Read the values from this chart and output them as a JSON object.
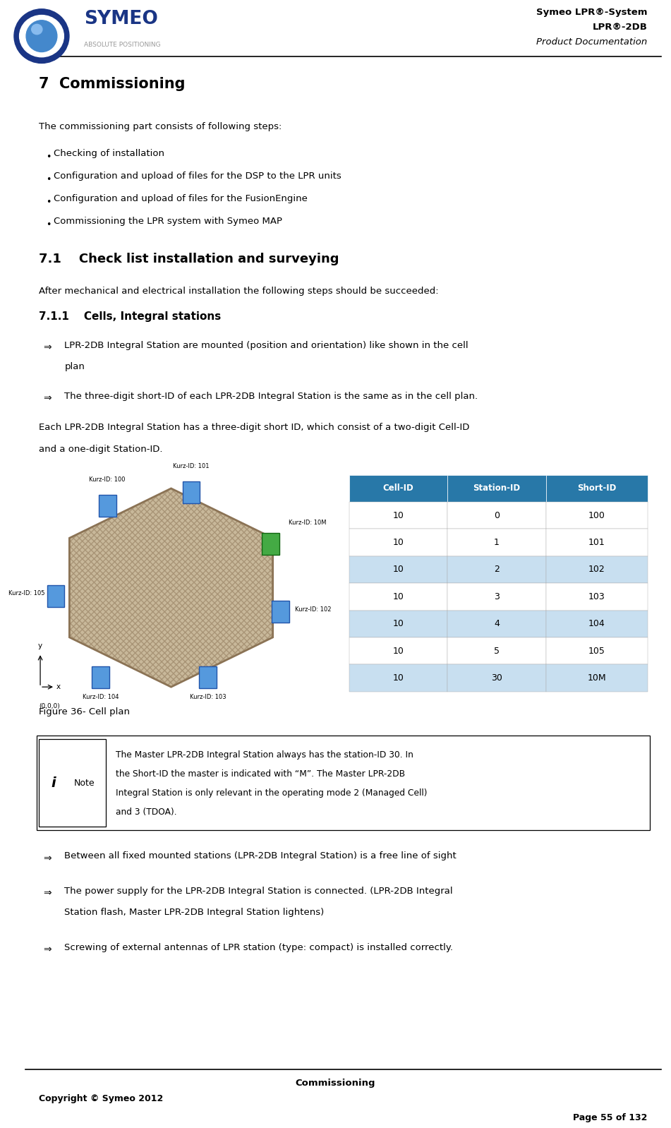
{
  "page_width": 9.51,
  "page_height": 15.98,
  "bg_color": "#ffffff",
  "header_title_lines": [
    "Symeo LPR®-System",
    "LPR®-2DB",
    "Product Documentation"
  ],
  "footer_center": "Commissioning",
  "footer_left": "Copyright © Symeo 2012",
  "footer_right": "Page 55 of 132",
  "section7_title": "7  Commissioning",
  "section7_body": "The commissioning part consists of following steps:",
  "bullets": [
    "Checking of installation",
    "Configuration and upload of files for the DSP to the LPR units",
    "Configuration and upload of files for the FusionEngine",
    "Commissioning the LPR system with Symeo MAP"
  ],
  "section71_title": "7.1    Check list installation and surveying",
  "section71_body": "After mechanical and electrical installation the following steps should be succeeded:",
  "section711_title": "7.1.1    Cells, Integral stations",
  "arrow_items": [
    "LPR-2DB Integral Station are mounted (position and orientation) like shown in the cell\nplan",
    "The three-digit short-ID of each LPR-2DB Integral Station is the same as in the cell plan."
  ],
  "para_body_lines": [
    "Each LPR-2DB Integral Station has a three-digit short ID, which consist of a two-digit Cell-ID",
    "and a one-digit Station-ID."
  ],
  "table_headers": [
    "Cell-ID",
    "Station-ID",
    "Short-ID"
  ],
  "table_header_color": "#2878a8",
  "table_header_text_color": "#ffffff",
  "table_rows": [
    [
      "10",
      "0",
      "100"
    ],
    [
      "10",
      "1",
      "101"
    ],
    [
      "10",
      "2",
      "102"
    ],
    [
      "10",
      "3",
      "103"
    ],
    [
      "10",
      "4",
      "104"
    ],
    [
      "10",
      "5",
      "105"
    ],
    [
      "10",
      "30",
      "10M"
    ]
  ],
  "table_row_colors": [
    "#ffffff",
    "#ffffff",
    "#c8dff0",
    "#ffffff",
    "#c8dff0",
    "#ffffff",
    "#c8dff0"
  ],
  "fig_caption": "Figure 36- Cell plan",
  "note_text_lines": [
    "The Master LPR-2DB Integral Station always has the station-ID 30. In",
    "the Short-ID the master is indicated with “M”. The Master LPR-2DB",
    "Integral Station is only relevant in the operating mode 2 (Managed Cell)",
    "and 3 (TDOA)."
  ],
  "bottom_arrows": [
    [
      "Between all fixed mounted stations (LPR-2DB Integral Station) is a free line of sight"
    ],
    [
      "The power supply for the LPR-2DB Integral Station is connected. (LPR-2DB Integral",
      "Station flash, Master LPR-2DB Integral Station lightens)"
    ],
    [
      "Screwing of external antennas of LPR station (type: compact) is installed correctly."
    ]
  ],
  "hex_color": "#c8b89a",
  "hex_stroke": "#8B7355",
  "node_color": "#5599dd",
  "node_stroke": "#2255aa",
  "master_color": "#44aa44",
  "master_stroke": "#116611",
  "symeo_blue": "#1a3585",
  "symeo_gray": "#999999"
}
